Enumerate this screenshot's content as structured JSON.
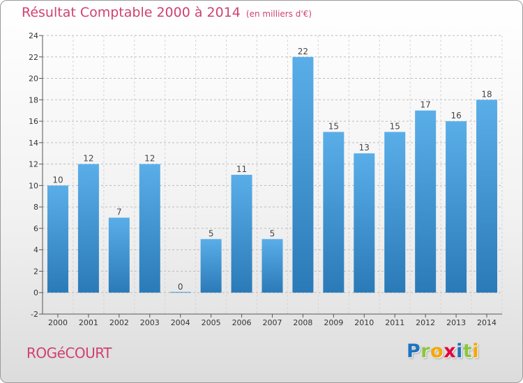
{
  "header": {
    "title": "Résultat Comptable 2000 à 2014",
    "subtitle": "(en milliers d'€)"
  },
  "footer": {
    "commune": "ROGéCOURT",
    "logo_letters": [
      {
        "ch": "P",
        "color": "#1e73be"
      },
      {
        "ch": "r",
        "color": "#8cc63f"
      },
      {
        "ch": "o",
        "color": "#f7a600"
      },
      {
        "ch": "x",
        "color": "#e4003a"
      },
      {
        "ch": "i",
        "color": "#1e73be"
      },
      {
        "ch": "t",
        "color": "#8cc63f"
      },
      {
        "ch": "i",
        "color": "#f7a600"
      }
    ]
  },
  "chart_data": {
    "type": "bar",
    "title": "Résultat Comptable 2000 à 2014",
    "subtitle": "(en milliers d'€)",
    "categories": [
      "2000",
      "2001",
      "2002",
      "2003",
      "2004",
      "2005",
      "2006",
      "2007",
      "2008",
      "2009",
      "2010",
      "2011",
      "2012",
      "2013",
      "2014"
    ],
    "values": [
      10,
      12,
      7,
      12,
      0,
      5,
      11,
      5,
      22,
      15,
      13,
      15,
      17,
      16,
      18
    ],
    "ylim": [
      -2,
      24
    ],
    "yticks": [
      -2,
      0,
      2,
      4,
      6,
      8,
      10,
      12,
      14,
      16,
      18,
      20,
      22,
      24
    ],
    "grid": "horizontal dashed",
    "colors": {
      "bar_light": "#5aaee8",
      "bar_dark": "#2a7ab8",
      "title": "#d0416e"
    }
  }
}
